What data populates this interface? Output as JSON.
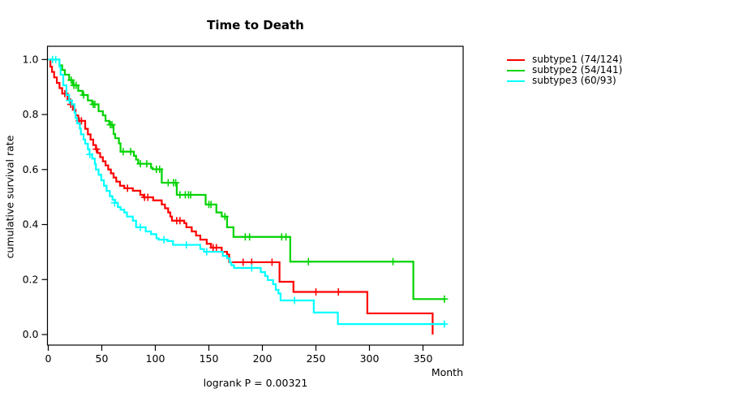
{
  "chart_data": {
    "type": "line",
    "subtype": "kaplan-meier-step",
    "title": "Time to Death",
    "xlabel": "Month",
    "ylabel": "cumulative survival rate",
    "footer_note": "logrank P = 0.00321",
    "xlim": [
      0,
      388
    ],
    "ylim": [
      0.0,
      1.0
    ],
    "x_ticks": [
      0,
      50,
      100,
      150,
      200,
      250,
      300,
      350
    ],
    "y_ticks": [
      0.0,
      0.2,
      0.4,
      0.6,
      0.8,
      1.0
    ],
    "grid": false,
    "legend_position": "right-outside",
    "series": [
      {
        "name": "subtype1 (74/124)",
        "color": "#ff0000",
        "end_month": 359,
        "steps": [
          [
            2,
            0.974
          ],
          [
            3.5,
            0.955
          ],
          [
            5.5,
            0.935
          ],
          [
            8,
            0.915
          ],
          [
            10.5,
            0.896
          ],
          [
            13,
            0.876
          ],
          [
            18,
            0.856
          ],
          [
            20.5,
            0.837
          ],
          [
            23,
            0.817
          ],
          [
            25.5,
            0.797
          ],
          [
            28,
            0.777
          ],
          [
            34.5,
            0.748
          ],
          [
            37,
            0.728
          ],
          [
            39.5,
            0.709
          ],
          [
            42,
            0.689
          ],
          [
            44.5,
            0.674
          ],
          [
            46,
            0.66
          ],
          [
            48.5,
            0.645
          ],
          [
            51,
            0.63
          ],
          [
            53.5,
            0.615
          ],
          [
            56,
            0.6
          ],
          [
            58.5,
            0.586
          ],
          [
            61,
            0.571
          ],
          [
            63.5,
            0.556
          ],
          [
            67,
            0.541
          ],
          [
            71,
            0.532
          ],
          [
            79,
            0.523
          ],
          [
            86,
            0.508
          ],
          [
            89,
            0.499
          ],
          [
            98,
            0.488
          ],
          [
            106,
            0.473
          ],
          [
            109,
            0.459
          ],
          [
            112,
            0.444
          ],
          [
            114,
            0.429
          ],
          [
            115.5,
            0.414
          ],
          [
            127,
            0.405
          ],
          [
            129,
            0.39
          ],
          [
            134,
            0.375
          ],
          [
            138,
            0.36
          ],
          [
            142,
            0.345
          ],
          [
            148,
            0.33
          ],
          [
            152,
            0.316
          ],
          [
            162,
            0.301
          ],
          [
            167,
            0.291
          ],
          [
            169,
            0.263
          ],
          [
            216,
            0.192
          ],
          [
            229,
            0.155
          ],
          [
            298,
            0.077
          ],
          [
            359,
            0
          ]
        ],
        "censors": [
          [
            15.5,
            0.876
          ],
          [
            21,
            0.837
          ],
          [
            29,
            0.777
          ],
          [
            31,
            0.777
          ],
          [
            45,
            0.674
          ],
          [
            74,
            0.532
          ],
          [
            90,
            0.499
          ],
          [
            93,
            0.499
          ],
          [
            120,
            0.414
          ],
          [
            123,
            0.414
          ],
          [
            154,
            0.316
          ],
          [
            157,
            0.316
          ],
          [
            182,
            0.263
          ],
          [
            190,
            0.263
          ],
          [
            209,
            0.263
          ],
          [
            250,
            0.155
          ],
          [
            271,
            0.155
          ]
        ]
      },
      {
        "name": "subtype2 (54/141)",
        "color": "#00d300",
        "end_month": 371,
        "steps": [
          [
            10.5,
            0.979
          ],
          [
            13,
            0.962
          ],
          [
            15.5,
            0.945
          ],
          [
            19.5,
            0.925
          ],
          [
            23,
            0.906
          ],
          [
            28,
            0.886
          ],
          [
            32,
            0.871
          ],
          [
            37,
            0.851
          ],
          [
            41,
            0.837
          ],
          [
            47,
            0.812
          ],
          [
            51,
            0.797
          ],
          [
            53.5,
            0.777
          ],
          [
            57,
            0.763
          ],
          [
            61,
            0.729
          ],
          [
            62.5,
            0.714
          ],
          [
            66,
            0.695
          ],
          [
            67.5,
            0.665
          ],
          [
            80,
            0.65
          ],
          [
            82,
            0.636
          ],
          [
            84,
            0.621
          ],
          [
            96,
            0.606
          ],
          [
            97.5,
            0.601
          ],
          [
            106,
            0.552
          ],
          [
            120,
            0.508
          ],
          [
            147,
            0.473
          ],
          [
            157,
            0.444
          ],
          [
            162,
            0.429
          ],
          [
            167,
            0.39
          ],
          [
            173,
            0.355
          ],
          [
            226,
            0.265
          ],
          [
            341,
            0.129
          ]
        ],
        "censors": [
          [
            21.5,
            0.925
          ],
          [
            24,
            0.906
          ],
          [
            26,
            0.906
          ],
          [
            33,
            0.871
          ],
          [
            42,
            0.837
          ],
          [
            43.5,
            0.837
          ],
          [
            58,
            0.763
          ],
          [
            59.5,
            0.763
          ],
          [
            70,
            0.665
          ],
          [
            77,
            0.665
          ],
          [
            86,
            0.621
          ],
          [
            92,
            0.621
          ],
          [
            101,
            0.601
          ],
          [
            104,
            0.601
          ],
          [
            112,
            0.552
          ],
          [
            117,
            0.552
          ],
          [
            119,
            0.552
          ],
          [
            123,
            0.508
          ],
          [
            128,
            0.508
          ],
          [
            131,
            0.508
          ],
          [
            133,
            0.508
          ],
          [
            150,
            0.473
          ],
          [
            152,
            0.473
          ],
          [
            165,
            0.429
          ],
          [
            184,
            0.355
          ],
          [
            188,
            0.355
          ],
          [
            218,
            0.355
          ],
          [
            222,
            0.355
          ],
          [
            243,
            0.265
          ],
          [
            322,
            0.265
          ],
          [
            370,
            0.129
          ]
        ]
      },
      {
        "name": "subtype3 (60/93)",
        "color": "#00ffff",
        "end_month": 371,
        "steps": [
          [
            10.5,
            0.974
          ],
          [
            11.5,
            0.945
          ],
          [
            14,
            0.906
          ],
          [
            17,
            0.871
          ],
          [
            19.5,
            0.851
          ],
          [
            22,
            0.837
          ],
          [
            24.5,
            0.807
          ],
          [
            25.5,
            0.787
          ],
          [
            27,
            0.768
          ],
          [
            29.5,
            0.748
          ],
          [
            30.5,
            0.728
          ],
          [
            33,
            0.709
          ],
          [
            34.5,
            0.694
          ],
          [
            37,
            0.674
          ],
          [
            38.5,
            0.655
          ],
          [
            41,
            0.64
          ],
          [
            43.5,
            0.62
          ],
          [
            44.5,
            0.6
          ],
          [
            47,
            0.581
          ],
          [
            49.5,
            0.561
          ],
          [
            52,
            0.541
          ],
          [
            54.5,
            0.522
          ],
          [
            57.5,
            0.503
          ],
          [
            60,
            0.49
          ],
          [
            62.5,
            0.479
          ],
          [
            65,
            0.464
          ],
          [
            67.5,
            0.454
          ],
          [
            71,
            0.444
          ],
          [
            73.5,
            0.429
          ],
          [
            79,
            0.414
          ],
          [
            82,
            0.39
          ],
          [
            91,
            0.375
          ],
          [
            96,
            0.365
          ],
          [
            101,
            0.35
          ],
          [
            103,
            0.345
          ],
          [
            111.5,
            0.34
          ],
          [
            116.5,
            0.326
          ],
          [
            142,
            0.311
          ],
          [
            145.5,
            0.301
          ],
          [
            163,
            0.286
          ],
          [
            167,
            0.277
          ],
          [
            169.5,
            0.262
          ],
          [
            171,
            0.252
          ],
          [
            173.5,
            0.242
          ],
          [
            198.5,
            0.227
          ],
          [
            202.5,
            0.213
          ],
          [
            205,
            0.198
          ],
          [
            210,
            0.183
          ],
          [
            212.5,
            0.163
          ],
          [
            215,
            0.149
          ],
          [
            217,
            0.124
          ],
          [
            248,
            0.08
          ],
          [
            270.5,
            0.038
          ]
        ],
        "censors": [
          [
            4,
            1
          ],
          [
            7,
            1
          ],
          [
            19.8,
            0.851
          ],
          [
            38.8,
            0.655
          ],
          [
            62,
            0.479
          ],
          [
            86,
            0.39
          ],
          [
            108,
            0.345
          ],
          [
            129,
            0.326
          ],
          [
            148,
            0.301
          ],
          [
            190,
            0.242
          ],
          [
            230,
            0.124
          ],
          [
            370,
            0.038
          ]
        ]
      }
    ]
  }
}
